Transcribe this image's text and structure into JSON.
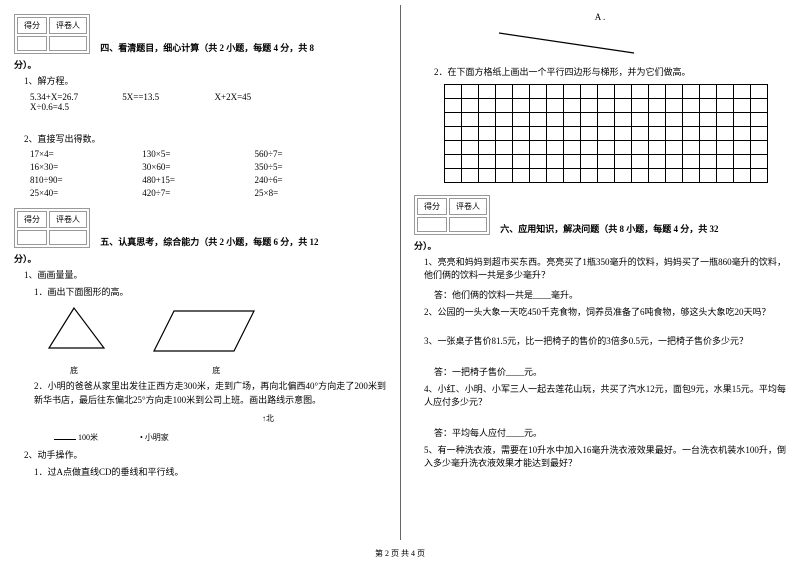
{
  "scorebox": {
    "c1": "得分",
    "c2": "评卷人"
  },
  "left": {
    "sec4_title": "四、看清题目，细心计算（共 2 小题，每题 4 分，共 8",
    "sec4_tail": "分）。",
    "q4_1_head": "1、解方程。",
    "q4_1_eqs": [
      "5.34+X=26.7",
      "5X==13.5",
      "X+2X=45",
      "X÷0.6=4.5"
    ],
    "q4_2_head": "2、直接写出得数。",
    "q4_2_rows": [
      [
        "17×4=",
        "130×5=",
        "560÷7="
      ],
      [
        "16×30=",
        "30×60=",
        "350÷5="
      ],
      [
        "810÷90=",
        "480+15=",
        "240÷6="
      ],
      [
        "25×40=",
        "420÷7=",
        "25×8="
      ]
    ],
    "sec5_title": "五、认真思考，综合能力（共 2 小题，每题 6 分，共 12",
    "sec5_tail": "分）。",
    "q5_1_head": "1、画画量量。",
    "q5_1_1": "1．画出下面图形的高。",
    "shape_labels": {
      "tri": "底",
      "para": "底"
    },
    "q5_1_2": "2．小明的爸爸从家里出发往正西方走300米，走到广场，再向北偏西40°方向走了200米到新华书店，最后往东偏北25°方向走100米到公司上班。画出路线示意图。",
    "scale": "100米",
    "home": "小明家",
    "north": "北",
    "q5_2_head": "2、动手操作。",
    "q5_2_1": "1．过A点做直线CD的垂线和平行线。"
  },
  "right": {
    "point_a": "A .",
    "q5_2_2": "2．在下面方格纸上画出一个平行四边形与梯形，并为它们做高。",
    "grid": {
      "rows": 7,
      "cols": 19
    },
    "sec6_title": "六、应用知识，解决问题（共 8 小题，每题 4 分，共 32",
    "sec6_tail": "分）。",
    "q6_1": "1、亮亮和妈妈到超市买东西。亮亮买了1瓶350毫升的饮料，妈妈买了一瓶860毫升的饮料，他们俩的饮料一共是多少毫升？",
    "a6_1": "答：他们俩的饮料一共是____毫升。",
    "q6_2": "2、公园的一头大象一天吃450千克食物，饲养员准备了6吨食物，够这头大象吃20天吗？",
    "q6_3": "3、一张桌子售价81.5元，比一把椅子的售价的3倍多0.5元，一把椅子售价多少元？",
    "a6_3": "答：一把椅子售价____元。",
    "q6_4": "4、小红、小明、小军三人一起去莲花山玩，共买了汽水12元，面包9元，水果15元。平均每人应付多少元？",
    "a6_4": "答：平均每人应付____元。",
    "q6_5": "5、有一种洗衣液，需要在10升水中加入16毫升洗衣液效果最好。一台洗衣机装水100升，倒入多少毫升洗衣液效果才能达到最好？"
  },
  "footer": "第 2 页 共 4 页"
}
